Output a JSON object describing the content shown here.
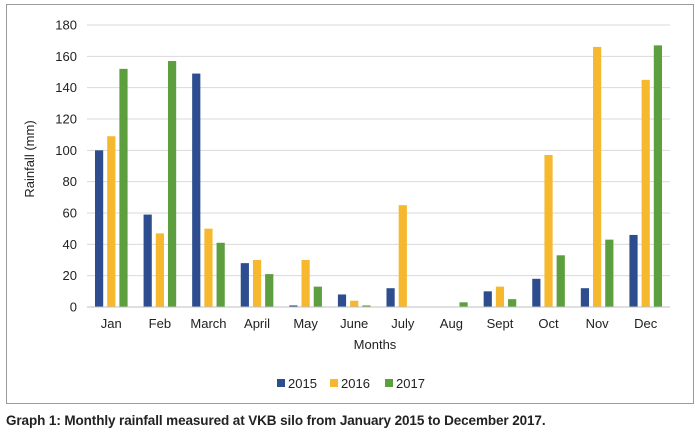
{
  "caption": "Graph 1: Monthly rainfall measured at VKB silo from January 2015 to December 2017.",
  "chart_data": {
    "type": "bar",
    "title": "",
    "xlabel": "Months",
    "ylabel": "Rainfall (mm)",
    "ylim": [
      0,
      180
    ],
    "yticks": [
      0,
      20,
      40,
      60,
      80,
      100,
      120,
      140,
      160,
      180
    ],
    "grid": true,
    "legend_position": "bottom",
    "categories": [
      "Jan",
      "Feb",
      "March",
      "April",
      "May",
      "June",
      "July",
      "Aug",
      "Sept",
      "Oct",
      "Nov",
      "Dec"
    ],
    "series": [
      {
        "name": "2015",
        "color": "#2e4d8f",
        "values": [
          100,
          59,
          149,
          28,
          1,
          8,
          12,
          0,
          10,
          18,
          12,
          46
        ]
      },
      {
        "name": "2016",
        "color": "#f5b82e",
        "values": [
          109,
          47,
          50,
          30,
          30,
          4,
          65,
          0,
          13,
          97,
          166,
          145
        ]
      },
      {
        "name": "2017",
        "color": "#5d9e3f",
        "values": [
          152,
          157,
          41,
          21,
          13,
          1,
          0,
          3,
          5,
          33,
          43,
          167
        ]
      }
    ]
  }
}
